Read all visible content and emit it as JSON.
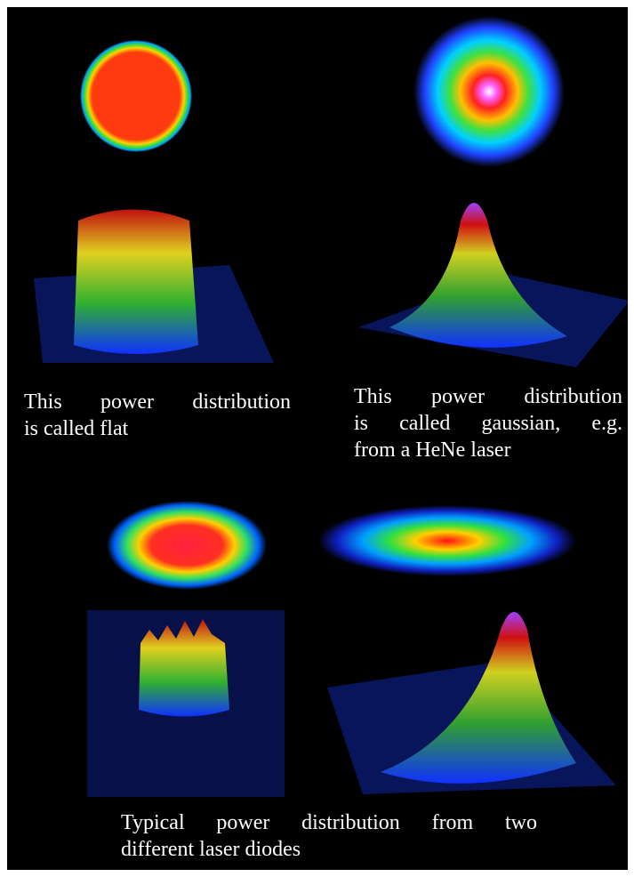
{
  "captions": {
    "flat": [
      "This power distribution",
      "is called flat"
    ],
    "gaussian": [
      "This power distribution",
      "is called gaussian, e.g.",
      "from a HeNe laser"
    ],
    "diodes": [
      "Typical power distribution from two",
      "different laser diodes"
    ]
  }
}
